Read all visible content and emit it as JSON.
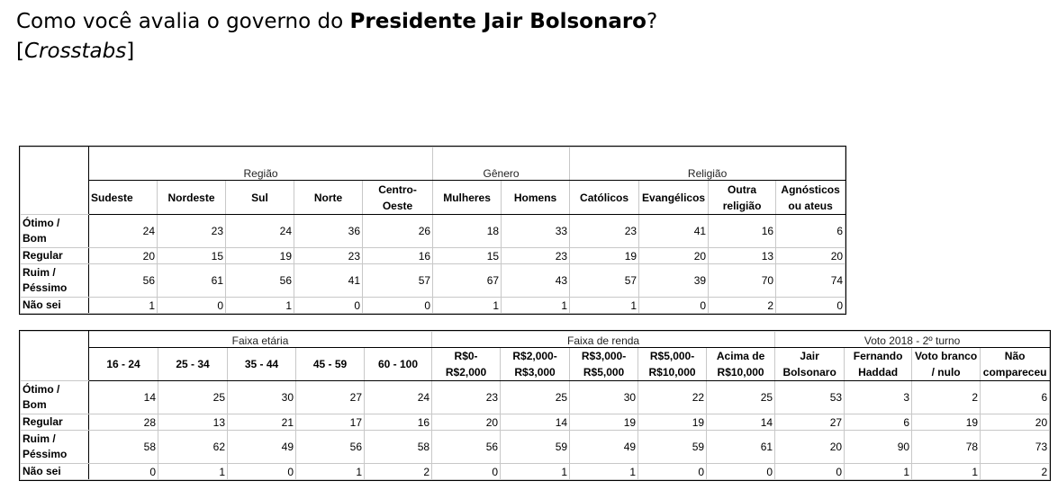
{
  "title": {
    "prefix": "Como você avalia o governo do ",
    "bold": "Presidente Jair Bolsonaro",
    "suffix": "?",
    "sub_open": "[",
    "sub_italic": "Crosstabs",
    "sub_close": "]"
  },
  "row_labels": [
    "Ótimo / Bom",
    "Regular",
    "Ruim / Péssimo",
    "Não sei"
  ],
  "tables": [
    {
      "groups": [
        {
          "label": "Região",
          "columns": [
            "Sudeste",
            "Nordeste",
            "Sul",
            "Norte",
            "Centro-Oeste"
          ]
        },
        {
          "label": "Gênero",
          "columns": [
            "Mulheres",
            "Homens"
          ]
        },
        {
          "label": "Religião",
          "columns": [
            "Católicos",
            "Evangélicos",
            "Outra religião",
            "Agnósticos ou ateus"
          ]
        }
      ],
      "rows": [
        [
          24,
          23,
          24,
          36,
          26,
          18,
          33,
          23,
          41,
          16,
          6
        ],
        [
          20,
          15,
          19,
          23,
          16,
          15,
          23,
          19,
          20,
          13,
          20
        ],
        [
          56,
          61,
          56,
          41,
          57,
          67,
          43,
          57,
          39,
          70,
          74
        ],
        [
          1,
          0,
          1,
          0,
          0,
          1,
          1,
          1,
          0,
          2,
          0
        ]
      ]
    },
    {
      "groups": [
        {
          "label": "Faixa etária",
          "columns": [
            "16 - 24",
            "25 - 34",
            "35 - 44",
            "45 - 59",
            "60 - 100"
          ]
        },
        {
          "label": "Faixa de renda",
          "columns": [
            "R$0- R$2,000",
            "R$2,000- R$3,000",
            "R$3,000- R$5,000",
            "R$5,000- R$10,000",
            "Acima de R$10,000"
          ]
        },
        {
          "label": "Voto 2018 - 2º turno",
          "columns": [
            "Jair Bolsonaro",
            "Fernando Haddad",
            "Voto branco / nulo",
            "Não compareceu"
          ]
        }
      ],
      "rows": [
        [
          14,
          25,
          30,
          27,
          24,
          23,
          25,
          30,
          22,
          25,
          53,
          3,
          2,
          6
        ],
        [
          28,
          13,
          21,
          17,
          16,
          20,
          14,
          19,
          19,
          14,
          27,
          6,
          19,
          20
        ],
        [
          58,
          62,
          49,
          56,
          58,
          56,
          59,
          49,
          59,
          61,
          20,
          90,
          78,
          73
        ],
        [
          0,
          1,
          0,
          1,
          2,
          0,
          1,
          1,
          0,
          0,
          0,
          1,
          1,
          2
        ]
      ]
    }
  ]
}
